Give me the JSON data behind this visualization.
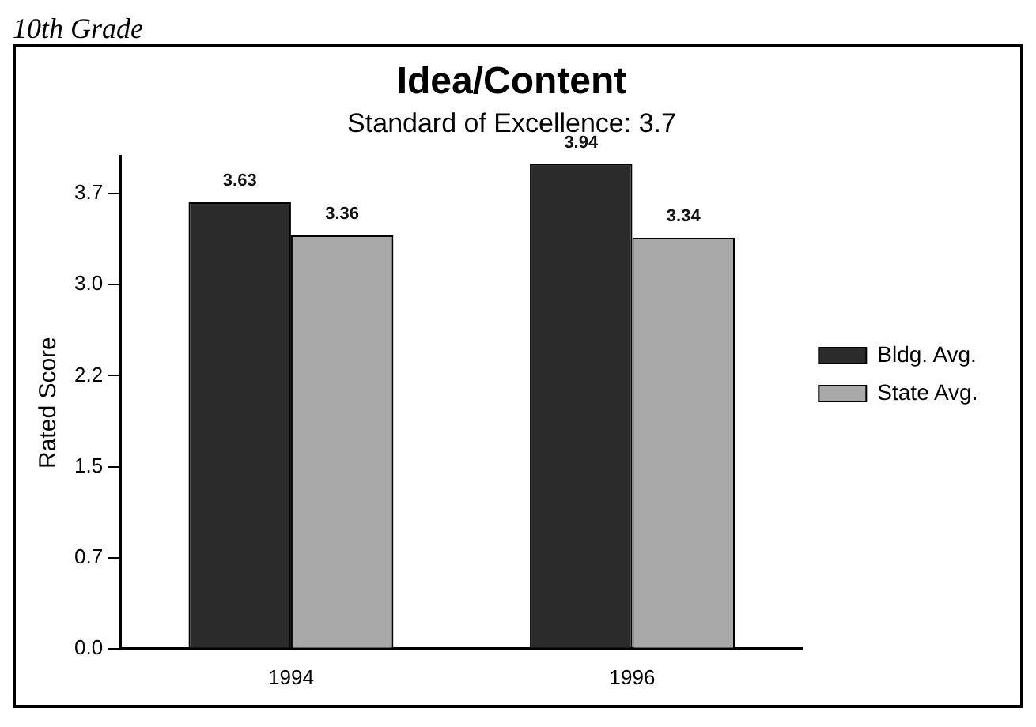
{
  "chart_data": {
    "type": "bar",
    "title": "Idea/Content",
    "subtitle": "Standard of Excellence: 3.7",
    "ylabel": "Rated Score",
    "annotations": [
      "10th Grade"
    ],
    "categories": [
      "1994",
      "1996"
    ],
    "series": [
      {
        "name": "Bldg. Avg.",
        "color": "#2b2b2b",
        "values": [
          3.63,
          3.94
        ]
      },
      {
        "name": "State Avg.",
        "color": "#a9a9a9",
        "values": [
          3.36,
          3.34
        ]
      }
    ],
    "ylim": [
      0,
      4
    ],
    "yticks": [
      {
        "value": 0,
        "label": "0.0"
      },
      {
        "value": 0.74,
        "label": "0.7"
      },
      {
        "value": 1.48,
        "label": "1.5"
      },
      {
        "value": 2.22,
        "label": "2.2"
      },
      {
        "value": 2.96,
        "label": "3.0"
      },
      {
        "value": 3.7,
        "label": "3.7"
      }
    ],
    "grid": false,
    "legend": "right",
    "data_labels": true
  }
}
